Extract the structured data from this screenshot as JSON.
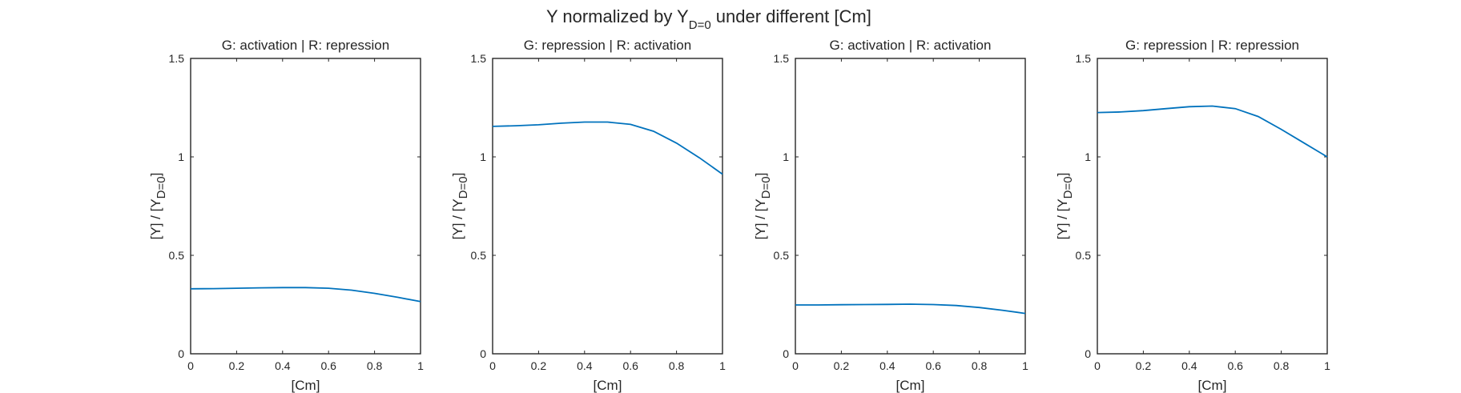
{
  "figure": {
    "suptitle": {
      "pre": "Y normalized by Y",
      "sub": "D=0",
      "post": " under different [Cm]"
    }
  },
  "chart_data": [
    {
      "type": "line",
      "title": "G: activation | R: repression",
      "xlabel": "[Cm]",
      "ylabel": {
        "pre": "[Y] / [Y",
        "sub": "D=0",
        "post": "]"
      },
      "xlim": [
        0,
        1
      ],
      "ylim": [
        0,
        1.5
      ],
      "xticks": [
        0,
        0.2,
        0.4,
        0.6,
        0.8,
        1
      ],
      "xticklabels": [
        "0",
        "0.2",
        "0.4",
        "0.6",
        "0.8",
        "1"
      ],
      "yticks": [
        0,
        0.5,
        1,
        1.5
      ],
      "yticklabels": [
        "0",
        "0.5",
        "1",
        "1.5"
      ],
      "grid": false,
      "color": "#0072BD",
      "x": [
        0,
        0.1,
        0.2,
        0.3,
        0.4,
        0.5,
        0.6,
        0.7,
        0.8,
        0.9,
        1.0
      ],
      "y": [
        0.33,
        0.331,
        0.333,
        0.335,
        0.336,
        0.336,
        0.333,
        0.323,
        0.307,
        0.287,
        0.265
      ]
    },
    {
      "type": "line",
      "title": "G: repression | R: activation",
      "xlabel": "[Cm]",
      "ylabel": {
        "pre": "[Y] / [Y",
        "sub": "D=0",
        "post": "]"
      },
      "xlim": [
        0,
        1
      ],
      "ylim": [
        0,
        1.5
      ],
      "xticks": [
        0,
        0.2,
        0.4,
        0.6,
        0.8,
        1
      ],
      "xticklabels": [
        "0",
        "0.2",
        "0.4",
        "0.6",
        "0.8",
        "1"
      ],
      "yticks": [
        0,
        0.5,
        1,
        1.5
      ],
      "yticklabels": [
        "0",
        "0.5",
        "1",
        "1.5"
      ],
      "grid": false,
      "color": "#0072BD",
      "x": [
        0,
        0.1,
        0.2,
        0.3,
        0.4,
        0.5,
        0.6,
        0.7,
        0.8,
        0.9,
        1.0
      ],
      "y": [
        1.155,
        1.158,
        1.163,
        1.171,
        1.177,
        1.177,
        1.165,
        1.13,
        1.07,
        0.995,
        0.912
      ]
    },
    {
      "type": "line",
      "title": "G: activation | R: activation",
      "xlabel": "[Cm]",
      "ylabel": {
        "pre": "[Y] / [Y",
        "sub": "D=0",
        "post": "]"
      },
      "xlim": [
        0,
        1
      ],
      "ylim": [
        0,
        1.5
      ],
      "xticks": [
        0,
        0.2,
        0.4,
        0.6,
        0.8,
        1
      ],
      "xticklabels": [
        "0",
        "0.2",
        "0.4",
        "0.6",
        "0.8",
        "1"
      ],
      "yticks": [
        0,
        0.5,
        1,
        1.5
      ],
      "yticklabels": [
        "0",
        "0.5",
        "1",
        "1.5"
      ],
      "grid": false,
      "color": "#0072BD",
      "x": [
        0,
        0.1,
        0.2,
        0.3,
        0.4,
        0.5,
        0.6,
        0.7,
        0.8,
        0.9,
        1.0
      ],
      "y": [
        0.248,
        0.248,
        0.249,
        0.25,
        0.251,
        0.252,
        0.25,
        0.245,
        0.235,
        0.221,
        0.205
      ]
    },
    {
      "type": "line",
      "title": "G: repression | R: repression",
      "xlabel": "[Cm]",
      "ylabel": {
        "pre": "[Y] / [Y",
        "sub": "D=0",
        "post": "]"
      },
      "xlim": [
        0,
        1
      ],
      "ylim": [
        0,
        1.5
      ],
      "xticks": [
        0,
        0.2,
        0.4,
        0.6,
        0.8,
        1
      ],
      "xticklabels": [
        "0",
        "0.2",
        "0.4",
        "0.6",
        "0.8",
        "1"
      ],
      "yticks": [
        0,
        0.5,
        1,
        1.5
      ],
      "yticklabels": [
        "0",
        "0.5",
        "1",
        "1.5"
      ],
      "grid": false,
      "color": "#0072BD",
      "x": [
        0,
        0.1,
        0.2,
        0.3,
        0.4,
        0.5,
        0.6,
        0.7,
        0.8,
        0.9,
        1.0
      ],
      "y": [
        1.225,
        1.228,
        1.235,
        1.245,
        1.255,
        1.258,
        1.245,
        1.205,
        1.14,
        1.07,
        1.0
      ]
    }
  ]
}
